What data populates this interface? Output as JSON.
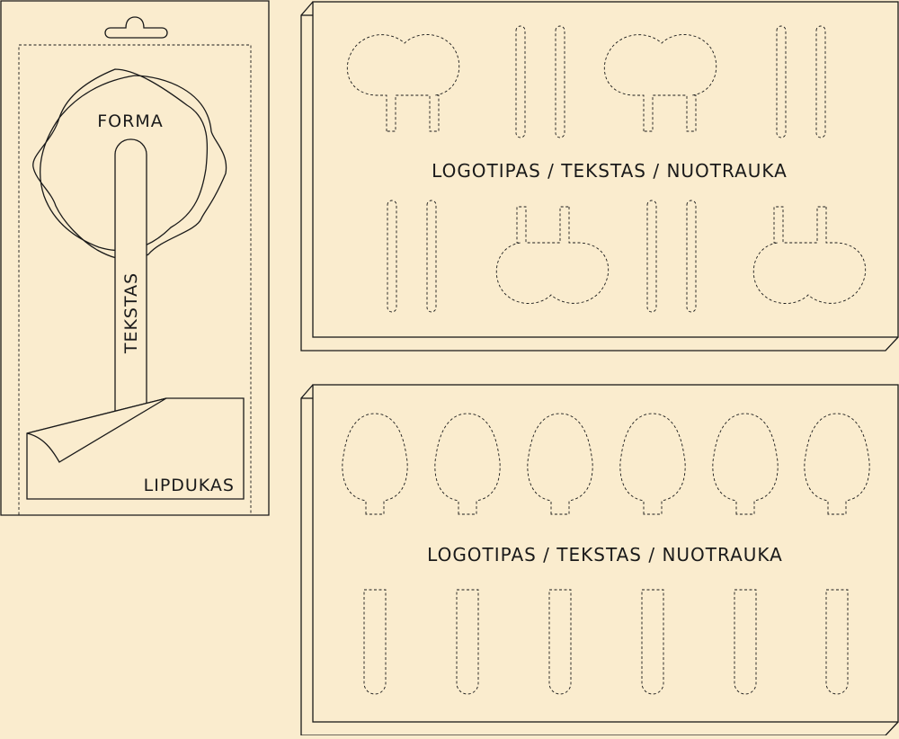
{
  "package_card": {
    "shape_label": "FORMA",
    "stick_label": "TEKSTAS",
    "sticker_label": "LIPDUKAS"
  },
  "tray_top": {
    "label": "LOGOTIPAS / TEKSTAS / NUOTRAUKA"
  },
  "tray_bottom": {
    "label": "LOGOTIPAS / TEKSTAS / NUOTRAUKA"
  }
}
